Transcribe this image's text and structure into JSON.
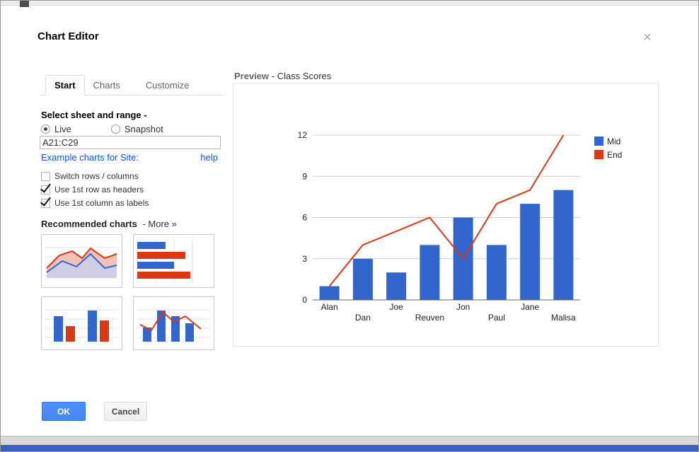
{
  "dialog": {
    "title": "Chart Editor",
    "close_label": "×"
  },
  "tabs": {
    "start": "Start",
    "charts": "Charts",
    "customize": "Customize"
  },
  "range_section": {
    "title": "Select sheet and range -",
    "live": {
      "label": "Live",
      "checked": true
    },
    "snapshot": {
      "label": "Snapshot",
      "checked": false
    },
    "range_value": "A21:C29",
    "example_link": "Example charts for Site:",
    "help_link": "help",
    "checkboxes": [
      {
        "label": "Switch rows / columns",
        "checked": false
      },
      {
        "label": "Use 1st row as headers",
        "checked": true
      },
      {
        "label": "Use 1st column as labels",
        "checked": true
      }
    ]
  },
  "recommended": {
    "title": "Recommended charts",
    "more_link": "- More »"
  },
  "preview": {
    "label": "Preview",
    "title_suffix": " - Class Scores"
  },
  "footer": {
    "ok": "OK",
    "cancel": "Cancel"
  },
  "colors": {
    "series_blue": "#3366cc",
    "series_red": "#dc3912",
    "link": "#1155cc",
    "ok_button": "#4d90fe"
  },
  "chart_data": {
    "type": "combo",
    "title": "Class Scores",
    "categories": [
      "Alan",
      "Dan",
      "Joe",
      "Reuven",
      "Jon",
      "Paul",
      "Jane",
      "Malisa"
    ],
    "series": [
      {
        "name": "Mid",
        "type": "bar",
        "color": "#3366cc",
        "values": [
          1,
          3,
          2,
          4,
          6,
          4,
          7,
          8
        ]
      },
      {
        "name": "End",
        "type": "line",
        "color": "#dc3912",
        "values": [
          1,
          4,
          5,
          6,
          3,
          7,
          8,
          12
        ]
      }
    ],
    "xlabel": "",
    "ylabel": "",
    "ylim": [
      0,
      12
    ],
    "yticks": [
      0,
      3,
      6,
      9,
      12
    ],
    "grid": true,
    "legend_position": "right"
  }
}
